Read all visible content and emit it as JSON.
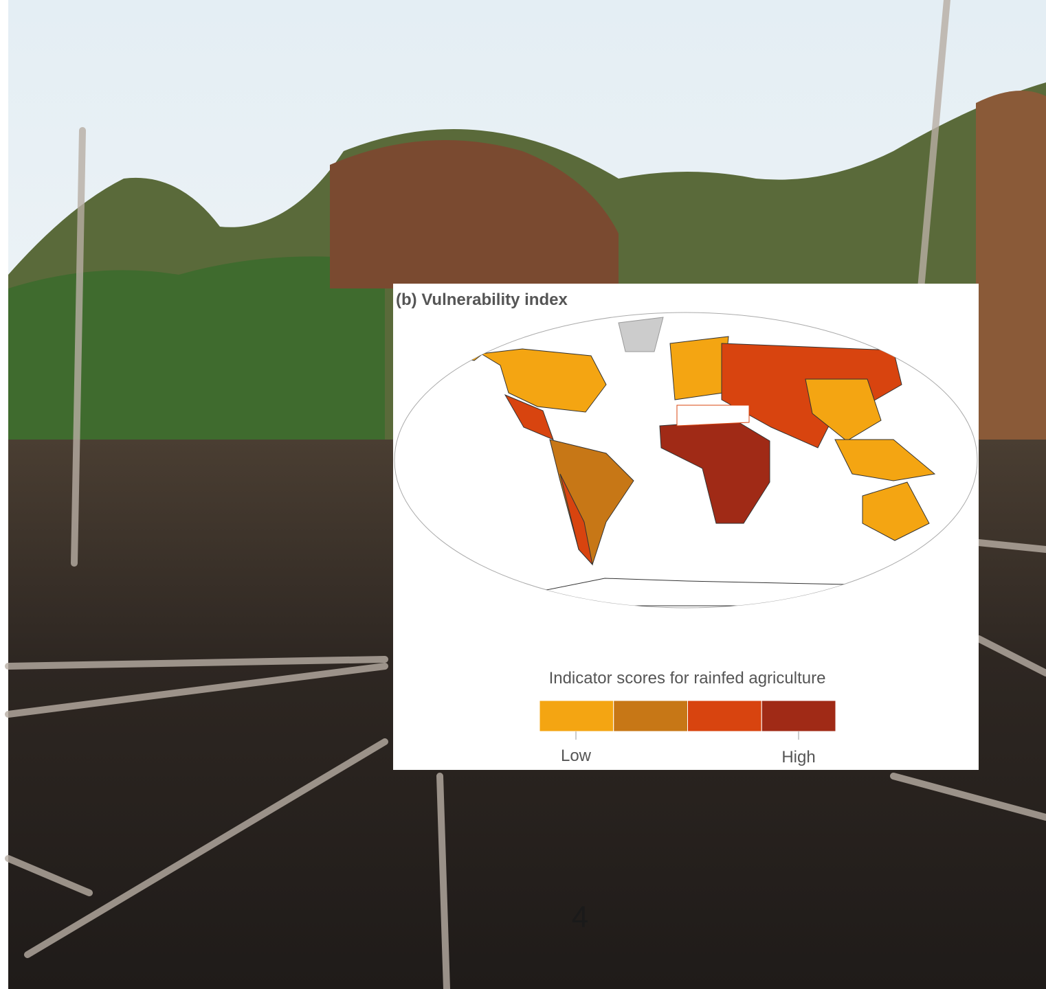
{
  "figure": {
    "title": "(b) Vulnerability index",
    "legend": {
      "title": "Indicator scores for rainfed agriculture",
      "colors": [
        "#f4a512",
        "#c77716",
        "#d8440f",
        "#a02a16"
      ],
      "low_label": "Low",
      "high_label": "High"
    }
  },
  "page_number": "4"
}
